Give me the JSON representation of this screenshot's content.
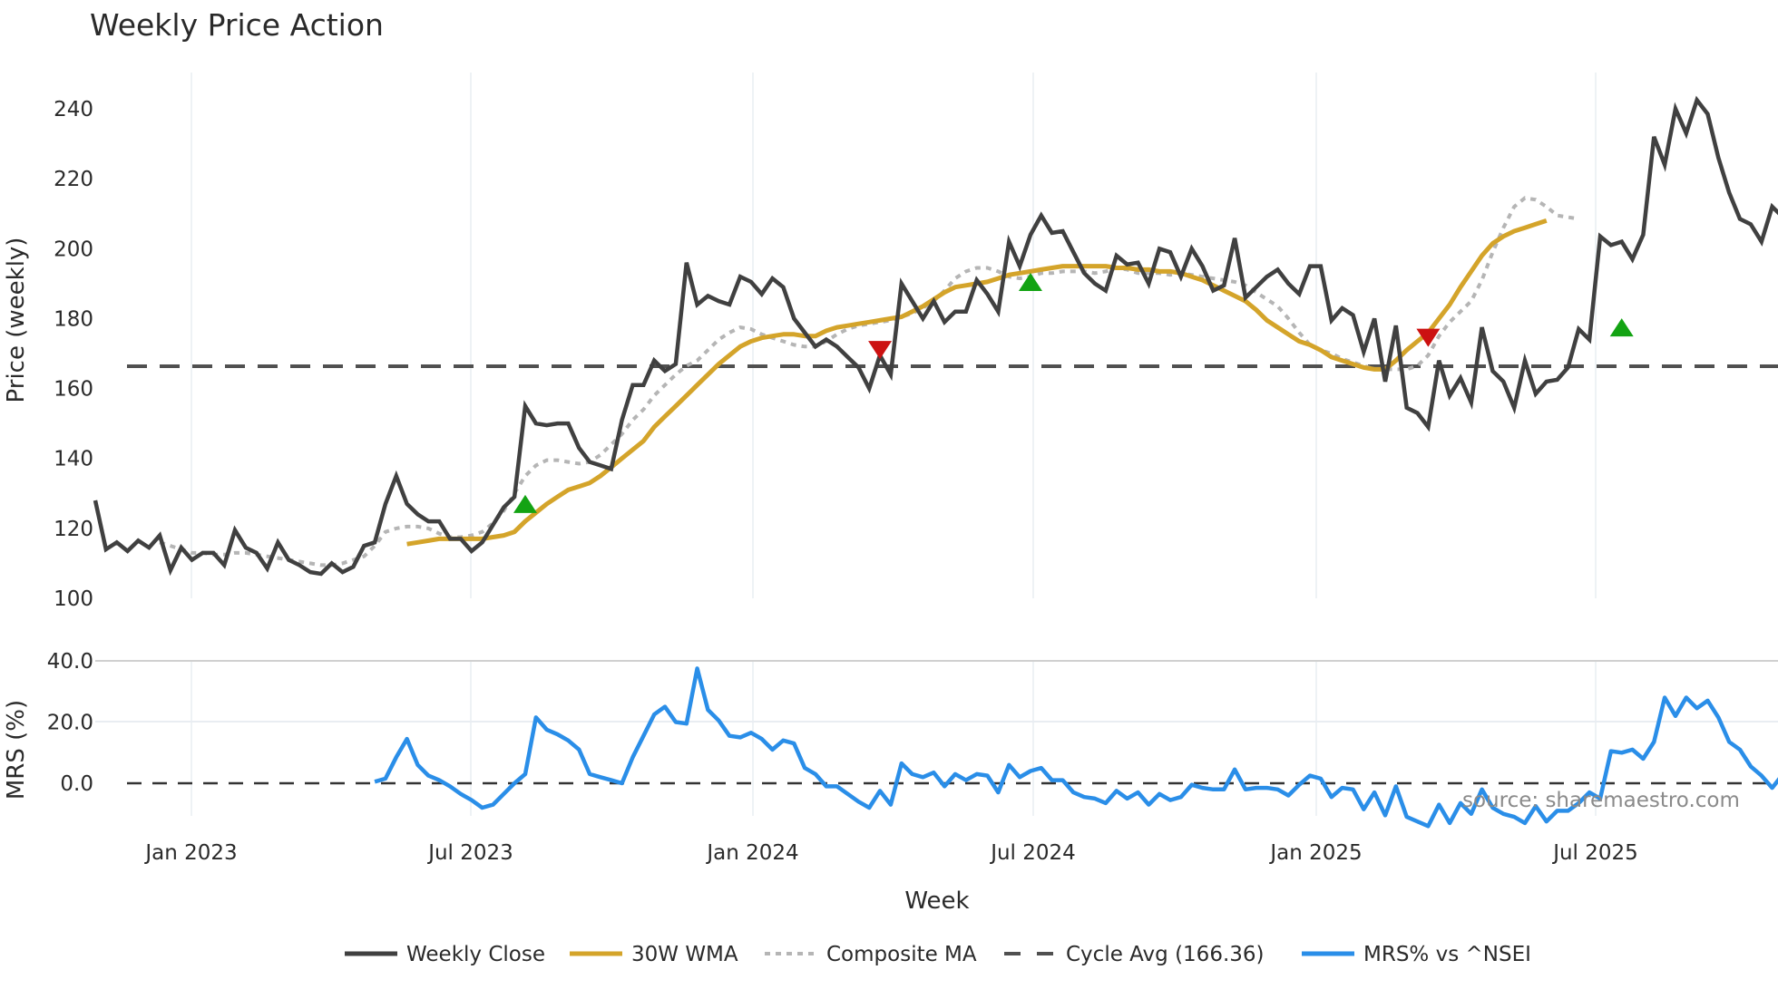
{
  "title": "Weekly Price Action",
  "source_note": "source: sharemaestro.com",
  "colors": {
    "close": "#404040",
    "wma": "#d4a42a",
    "composite": "#b5b5b5",
    "cycle": "#505050",
    "mrs": "#2a8ee8",
    "buy": "#13a313",
    "sell": "#cc1111",
    "grid": "#e9edf2"
  },
  "legend": [
    {
      "key": "close",
      "label": "Weekly Close",
      "style": "solid"
    },
    {
      "key": "wma",
      "label": "30W WMA",
      "style": "solid"
    },
    {
      "key": "composite",
      "label": "Composite MA",
      "style": "dot"
    },
    {
      "key": "cycle",
      "label": "Cycle Avg (166.36)",
      "style": "dash"
    },
    {
      "key": "mrs",
      "label": "MRS% vs ^NSEI",
      "style": "solid"
    }
  ],
  "chart_data": [
    {
      "type": "line",
      "title": "Weekly Price Action",
      "xlabel": "Week",
      "ylabel": "Price (weekly)",
      "ylim": [
        100,
        250
      ],
      "yticks": [
        100,
        120,
        140,
        160,
        180,
        200,
        220,
        240
      ],
      "xticks": [
        "Jan 2023",
        "Jul 2023",
        "Jan 2024",
        "Jul 2024",
        "Jan 2025",
        "Jul 2025"
      ],
      "grid": "vertical",
      "legend_position": "bottom",
      "x_start_week_offset": -9,
      "series": [
        {
          "name": "Weekly Close",
          "start": 0,
          "values": [
            128,
            114,
            116,
            113.5,
            116.5,
            114.5,
            118,
            108,
            114.5,
            111,
            113,
            113,
            109.5,
            119.5,
            114.5,
            113,
            108.5,
            116,
            111,
            109.5,
            107.5,
            107,
            110,
            107.5,
            109,
            115,
            116,
            127,
            135,
            127,
            124,
            122,
            122,
            117,
            117,
            113.5,
            116,
            121,
            126,
            129,
            155,
            150,
            149.5,
            150,
            150,
            143,
            139,
            138,
            137,
            151,
            161,
            161,
            168,
            165,
            167,
            196,
            184,
            186.5,
            185,
            184,
            192,
            190.5,
            187,
            191.5,
            189,
            180,
            176,
            172,
            174,
            172,
            169,
            166,
            160,
            169.5,
            164,
            190,
            185,
            180,
            185,
            179,
            182,
            182,
            191,
            187,
            182,
            202,
            195,
            204,
            209.5,
            204.5,
            205,
            199,
            193,
            190,
            188,
            198,
            195.5,
            196,
            190,
            200,
            199,
            192,
            200,
            195,
            188,
            189.5,
            203,
            186,
            189,
            192,
            194,
            190,
            187,
            195,
            195,
            179.5,
            183,
            181,
            170.5,
            180,
            162,
            178,
            154.5,
            153,
            149,
            168,
            158,
            163,
            156,
            177.5,
            165,
            162,
            154.5,
            168,
            158.5,
            162,
            162.5,
            166,
            177,
            174,
            203.5,
            201,
            202,
            197,
            204,
            232,
            224,
            240,
            233,
            242.5,
            238.5,
            226,
            216,
            208.5,
            207,
            202,
            212,
            209
          ]
        },
        {
          "name": "30W WMA",
          "start": 29,
          "values": [
            115.5,
            116,
            116.5,
            117,
            117,
            117,
            117,
            117,
            117.5,
            118,
            119,
            122,
            124.5,
            127,
            129,
            131,
            132,
            133,
            135,
            137.5,
            140,
            142.5,
            145,
            149,
            152,
            155,
            158,
            161,
            164,
            167,
            169.5,
            172,
            173.5,
            174.5,
            175,
            175.5,
            175.5,
            175,
            175,
            176.5,
            177.5,
            178,
            178.5,
            179,
            179.5,
            180,
            180.5,
            182,
            183.5,
            185.5,
            187.5,
            189,
            189.5,
            190,
            190.5,
            191.5,
            192.5,
            193,
            193.5,
            194,
            194.5,
            195,
            195,
            195,
            195,
            195,
            194.5,
            194.5,
            194,
            194,
            193.5,
            193.5,
            193,
            192,
            191,
            189.5,
            188,
            186.5,
            185,
            182.5,
            179.5,
            177.5,
            175.5,
            173.5,
            172.5,
            171,
            169,
            168,
            167,
            166,
            165.5,
            165.5,
            168,
            171,
            173.5,
            176,
            180,
            184,
            189,
            193.5,
            198,
            201.5,
            203.5,
            205,
            206,
            207,
            208
          ]
        },
        {
          "name": "Composite MA",
          "start": 6,
          "values": [
            116,
            115,
            114,
            113,
            113,
            112.5,
            112.5,
            113,
            113,
            112.5,
            112,
            111.5,
            111,
            110.5,
            110,
            109.5,
            109.5,
            110,
            111,
            112,
            115,
            119,
            120,
            120.5,
            120.5,
            120,
            118.5,
            117.5,
            117.5,
            118,
            119,
            121.5,
            125,
            130,
            135,
            138,
            139.5,
            139.5,
            139,
            138.5,
            139,
            141,
            144,
            147,
            151,
            154,
            158,
            161,
            164,
            166.5,
            168,
            171,
            174,
            176,
            177.5,
            177,
            175.5,
            174.5,
            173.5,
            172.5,
            172,
            172,
            173.5,
            175.5,
            177,
            178,
            178.5,
            179,
            179.5,
            180.5,
            181.5,
            183,
            185,
            188,
            191.5,
            193.5,
            194.5,
            194.5,
            193.5,
            192,
            191.5,
            192,
            193,
            193,
            193.5,
            193.5,
            193.5,
            193,
            193.5,
            194.5,
            194,
            193,
            193,
            193,
            192.5,
            193,
            192.5,
            192,
            191.5,
            191,
            190.5,
            189.5,
            187.5,
            185.5,
            183.5,
            180,
            176,
            172.5,
            171,
            170,
            168.5,
            167.5,
            166.5,
            165.5,
            165.5,
            165.5,
            165.5,
            166.5,
            169.5,
            175,
            179,
            182,
            185,
            191,
            199,
            206,
            212,
            214.5,
            214,
            212,
            209.5,
            209,
            208.5
          ]
        },
        {
          "name": "Cycle Avg",
          "constant": 166.36
        }
      ],
      "signals": [
        {
          "type": "buy",
          "week_index": 40,
          "price": 127
        },
        {
          "type": "sell",
          "week_index": 73,
          "price": 171
        },
        {
          "type": "buy",
          "week_index": 87,
          "price": 190.5
        },
        {
          "type": "sell",
          "week_index": 124,
          "price": 174.5
        },
        {
          "type": "buy",
          "week_index": 142,
          "price": 177.5
        }
      ]
    },
    {
      "type": "line",
      "title": "",
      "xlabel": "Week",
      "ylabel": "MRS (%)",
      "ylim": [
        -15,
        42
      ],
      "yticks": [
        "0.0",
        "20.0",
        "40.0"
      ],
      "ytick_values": [
        0,
        20,
        40
      ],
      "series": [
        {
          "name": "MRS% vs ^NSEI",
          "start": 26,
          "values": [
            0.5,
            1.5,
            8.5,
            14.5,
            6,
            2.5,
            1,
            -1,
            -3.5,
            -5.5,
            -8,
            -7,
            -3.5,
            0,
            3,
            21.5,
            17.5,
            16,
            14,
            11,
            3,
            2,
            1,
            0,
            8.5,
            15.5,
            22.5,
            25,
            20,
            19.5,
            37.5,
            24,
            20.5,
            15.5,
            15,
            16.5,
            14.5,
            11,
            14,
            13,
            5,
            3,
            -1,
            -1,
            -3.5,
            -6,
            -8,
            -2.5,
            -7,
            6.5,
            3,
            2,
            3.5,
            -1,
            3,
            1,
            3,
            2.5,
            -3,
            6,
            2,
            4,
            5,
            1,
            1,
            -3,
            -4.5,
            -5,
            -6.5,
            -2.5,
            -5,
            -3,
            -7,
            -3.5,
            -5.5,
            -4.5,
            -0.5,
            -1.5,
            -2,
            -2,
            4.5,
            -2,
            -1.5,
            -1.5,
            -2,
            -4,
            -0.5,
            2.5,
            1.5,
            -4.5,
            -1.5,
            -2,
            -8.5,
            -3,
            -10.5,
            -1,
            -11,
            -12.5,
            -14,
            -7,
            -13,
            -6.5,
            -10,
            -2,
            -8,
            -10,
            -11,
            -13,
            -7.5,
            -12.5,
            -9,
            -9,
            -6.5,
            -3,
            -5,
            10.5,
            10,
            11,
            8,
            13.5,
            28,
            22,
            28,
            24.5,
            27,
            21.5,
            13.5,
            11,
            5.5,
            2.5,
            -1.5,
            3,
            1.5
          ]
        }
      ],
      "reference_line": 0
    }
  ]
}
